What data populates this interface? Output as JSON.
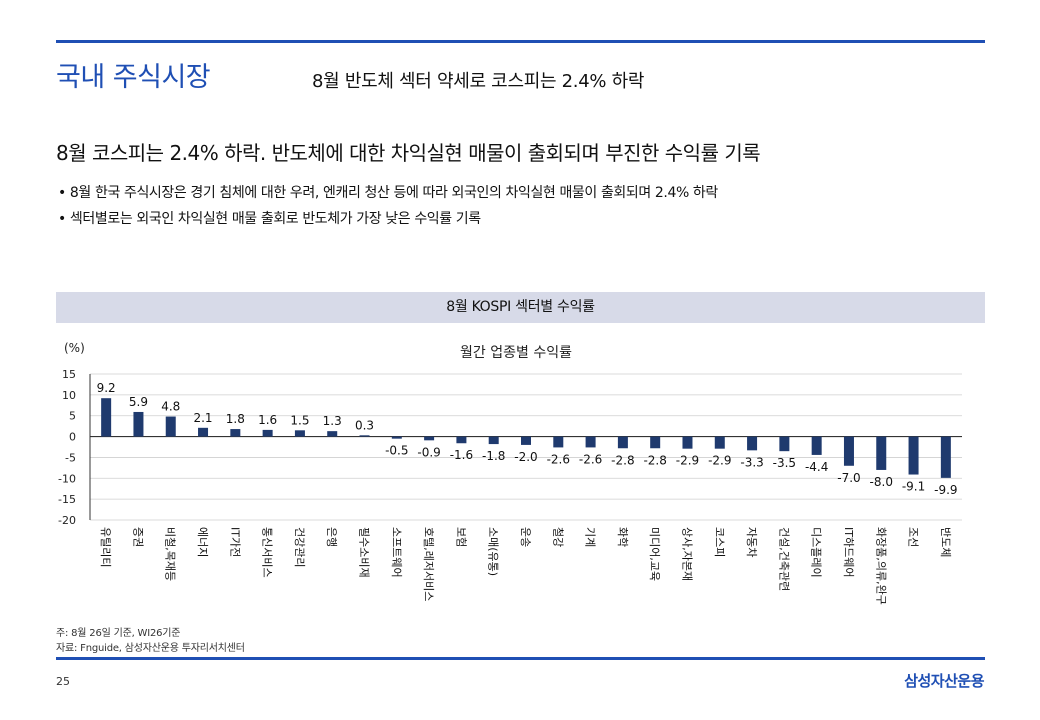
{
  "header": {
    "section_title": "국내 주식시장",
    "subtitle": "8월 반도체 섹터 약세로 코스피는 2.4% 하락"
  },
  "headline": "8월 코스피는 2.4% 하락. 반도체에 대한 차익실현 매물이 출회되며 부진한 수익률 기록",
  "bullets": [
    "8월 한국 주식시장은 경기 침체에 대한 우려, 엔캐리 청산 등에 따라 외국인의 차익실현 매물이 출회되며 2.4% 하락",
    "섹터별로는 외국인 차익실현 매물 출회로 반도체가 가장 낮은 수익률 기록"
  ],
  "chart_banner": "8월 KOSPI 섹터별 수익률",
  "chart_data": {
    "type": "bar",
    "title": "월간 업종별 수익률",
    "ylabel": "(%)",
    "ylim": [
      -20,
      15
    ],
    "yticks": [
      15,
      10,
      5,
      0,
      -5,
      -10,
      -15,
      -20
    ],
    "grid": true,
    "categories": [
      "유틸리티",
      "증권",
      "비철,목재등",
      "에너지",
      "IT가전",
      "통신서비스",
      "건강관리",
      "은행",
      "필수소비재",
      "소프트웨어",
      "호텔,레저서비스",
      "보험",
      "소매(유통)",
      "운송",
      "철강",
      "기계",
      "화학",
      "미디어,교육",
      "상사,자본재",
      "코스피",
      "자동차",
      "건설,건축관련",
      "디스플레이",
      "IT하드웨어",
      "화장품,의류,완구",
      "조선",
      "반도체"
    ],
    "values": [
      9.2,
      5.9,
      4.8,
      2.1,
      1.8,
      1.6,
      1.5,
      1.3,
      0.3,
      -0.5,
      -0.9,
      -1.6,
      -1.8,
      -2.0,
      -2.6,
      -2.6,
      -2.8,
      -2.8,
      -2.9,
      -2.9,
      -3.3,
      -3.5,
      -4.4,
      -7.0,
      -8.0,
      -9.1,
      -9.9
    ],
    "value_labels": [
      "9.2",
      "5.9",
      "4.8",
      "2.1",
      "1.8",
      "1.6",
      "1.5",
      "1.3",
      "0.3",
      "-0.5",
      "-0.9",
      "-1.6",
      "-1.8",
      "-2.0",
      "-2.6",
      "-2.6",
      "-2.8",
      "-2.8",
      "-2.9",
      "-2.9",
      "-3.3",
      "-3.5",
      "-4.4",
      "-7.0",
      "-8.0",
      "-9.1",
      "-9.9"
    ],
    "bar_color": "#1f3a6e"
  },
  "notes": [
    "주: 8월 26일 기준, WI26기준",
    "자료: Fnguide, 삼성자산운용 투자리서치센터"
  ],
  "footer": {
    "page_number": "25",
    "brand": "삼성자산운용"
  },
  "colors": {
    "accent": "#1f4fb4",
    "banner_bg": "#d7dae8"
  }
}
